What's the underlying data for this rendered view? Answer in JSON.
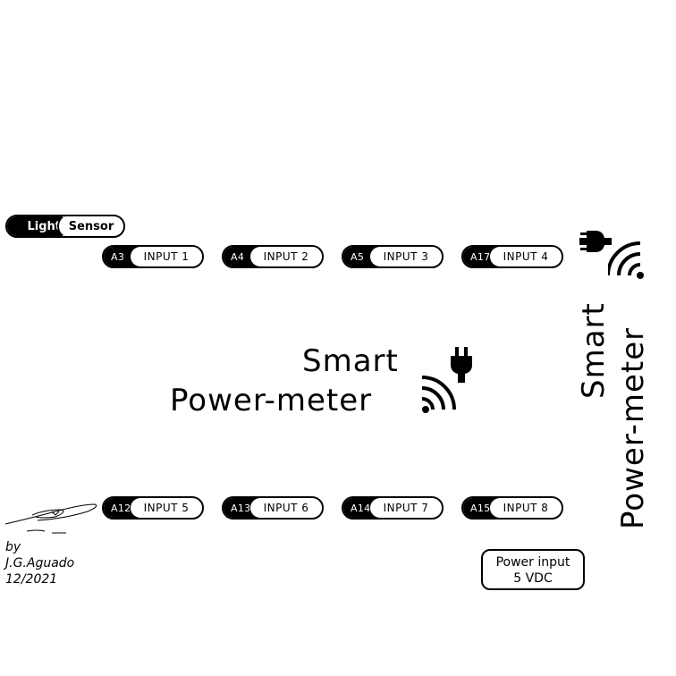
{
  "light_sensor": {
    "left": "Light",
    "right": "Sensor"
  },
  "inputs_top": [
    {
      "pin": "A3",
      "label": "INPUT 1"
    },
    {
      "pin": "A4",
      "label": "INPUT 2"
    },
    {
      "pin": "A5",
      "label": "INPUT 3"
    },
    {
      "pin": "A17",
      "label": "INPUT 4"
    }
  ],
  "inputs_bottom": [
    {
      "pin": "A12",
      "label": "INPUT 5"
    },
    {
      "pin": "A13",
      "label": "INPUT 6"
    },
    {
      "pin": "A14",
      "label": "INPUT 7"
    },
    {
      "pin": "A15",
      "label": "INPUT 8"
    }
  ],
  "title": {
    "line1": "Smart",
    "line2": "Power-meter"
  },
  "vertical_title": {
    "line1": "Smart",
    "line2": "Power-meter"
  },
  "credits": {
    "by": "by",
    "author": "J.G.Aguado",
    "date": "12/2021"
  },
  "power": {
    "line1": "Power input",
    "line2": "5 VDC"
  },
  "icons": [
    "plug-icon",
    "wifi-signal-icon",
    "signature-icon"
  ]
}
